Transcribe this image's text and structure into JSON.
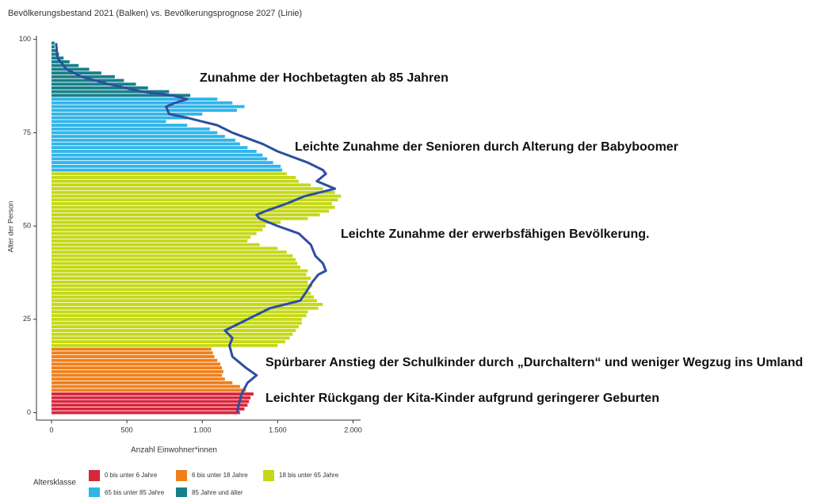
{
  "chart_data": {
    "type": "bar",
    "orientation": "horizontal",
    "title": "Bevölkerungsbestand 2021 (Balken) vs. Bevölkerungsprognose 2027 (Linie)",
    "x_label": "Anzahl Einwohner*innen",
    "y_label": "Alter der Person",
    "xlim": [
      -100,
      2050
    ],
    "ylim": [
      -2,
      101
    ],
    "xticks": [
      0,
      500,
      {
        "value": 1000,
        "label": "1.000"
      },
      {
        "value": 1500,
        "label": "1.500"
      },
      {
        "value": 2000,
        "label": "2.000"
      }
    ],
    "yticks": [
      0,
      25,
      50,
      75,
      100
    ],
    "legend_title": "Altersklasse",
    "series": [
      {
        "name": "0 bis unter 6 Jahre",
        "color": "#d7263d",
        "y": [
          0,
          1,
          2,
          3,
          4,
          5
        ],
        "values": [
          1250,
          1280,
          1300,
          1310,
          1320,
          1340
        ]
      },
      {
        "name": "6 bis unter 18 Jahre",
        "color": "#f07f1a",
        "y": [
          6,
          7,
          8,
          9,
          10,
          11,
          12,
          13,
          14,
          15,
          16,
          17
        ],
        "values": [
          1290,
          1250,
          1200,
          1150,
          1130,
          1140,
          1130,
          1120,
          1100,
          1080,
          1070,
          1060
        ]
      },
      {
        "name": "18 bis unter 65 Jahre",
        "color": "#c5d816",
        "y": [
          18,
          19,
          20,
          21,
          22,
          23,
          24,
          25,
          26,
          27,
          28,
          29,
          30,
          31,
          32,
          33,
          34,
          35,
          36,
          37,
          38,
          39,
          40,
          41,
          42,
          43,
          44,
          45,
          46,
          47,
          48,
          49,
          50,
          51,
          52,
          53,
          54,
          55,
          56,
          57,
          58,
          59,
          60,
          61,
          62,
          63,
          64
        ],
        "values": [
          1500,
          1550,
          1580,
          1600,
          1620,
          1640,
          1660,
          1660,
          1690,
          1700,
          1770,
          1800,
          1760,
          1740,
          1720,
          1700,
          1730,
          1700,
          1720,
          1690,
          1700,
          1650,
          1630,
          1620,
          1600,
          1560,
          1500,
          1380,
          1300,
          1320,
          1360,
          1400,
          1420,
          1520,
          1700,
          1780,
          1840,
          1880,
          1860,
          1900,
          1920,
          1880,
          1800,
          1720,
          1640,
          1620,
          1560
        ]
      },
      {
        "name": "65 bis unter 85 Jahre",
        "color": "#2fb5ea",
        "y": [
          65,
          66,
          67,
          68,
          69,
          70,
          71,
          72,
          73,
          74,
          75,
          76,
          77,
          78,
          79,
          80,
          81,
          82,
          83,
          84
        ],
        "values": [
          1530,
          1520,
          1470,
          1430,
          1400,
          1360,
          1300,
          1250,
          1220,
          1150,
          1100,
          1050,
          900,
          760,
          900,
          1000,
          1230,
          1280,
          1200,
          1100
        ]
      },
      {
        "name": "85 Jahre und älter",
        "color": "#16808a",
        "y": [
          85,
          86,
          87,
          88,
          89,
          90,
          91,
          92,
          93,
          94,
          95,
          96,
          97,
          98,
          99
        ],
        "values": [
          920,
          780,
          640,
          560,
          480,
          420,
          330,
          250,
          180,
          120,
          80,
          50,
          30,
          20,
          20
        ]
      }
    ],
    "line": {
      "color": "#2d4fa0",
      "y": [
        0,
        5,
        8,
        10,
        12,
        15,
        18,
        20,
        22,
        25,
        28,
        30,
        33,
        35,
        37,
        38,
        40,
        42,
        45,
        48,
        50,
        52,
        53,
        54,
        56,
        58,
        60,
        62,
        64,
        65,
        67,
        70,
        72,
        75,
        77,
        79,
        80,
        82,
        83,
        84,
        85,
        86,
        88,
        90,
        92,
        95,
        99
      ],
      "values": [
        1230,
        1260,
        1300,
        1360,
        1290,
        1200,
        1180,
        1200,
        1150,
        1300,
        1450,
        1650,
        1700,
        1730,
        1770,
        1820,
        1800,
        1750,
        1720,
        1640,
        1500,
        1380,
        1360,
        1420,
        1560,
        1680,
        1880,
        1760,
        1820,
        1800,
        1700,
        1500,
        1400,
        1200,
        1100,
        900,
        780,
        760,
        820,
        900,
        800,
        600,
        380,
        200,
        100,
        40,
        30
      ]
    },
    "annotations": [
      "Zunahme der Hochbetagten ab 85 Jahren",
      "Leichte Zunahme der Senioren durch Alterung der Babyboomer",
      "Leichte Zunahme der erwerbsfähigen Bevölkerung.",
      "Spürbarer Anstieg der Schulkinder durch „Durchaltern“ und weniger Wegzug ins Umland",
      "Leichter Rückgang der Kita-Kinder aufgrund geringerer Geburten"
    ]
  }
}
